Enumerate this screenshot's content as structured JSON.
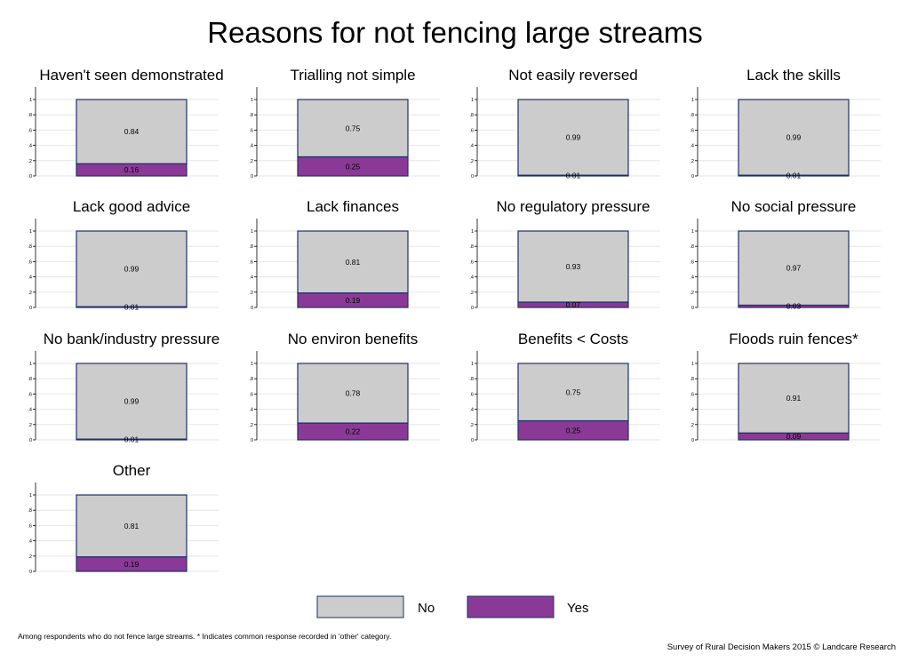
{
  "title": "Reasons for not fencing large streams",
  "footnote": "Among respondents who do not fence large streams. * Indicates common response recorded in 'other' category.",
  "source": "Survey of Rural Decision Makers 2015 © Landcare Research",
  "legend": {
    "no_label": "No",
    "yes_label": "Yes"
  },
  "colors": {
    "no": "#cccccc",
    "yes": "#8a3a96",
    "border": "#1f2f6b",
    "grid": "#e6e6e6",
    "axis": "#000000"
  },
  "chart_data": {
    "type": "bar",
    "stacked": true,
    "layout": "small-multiples",
    "ylim": [
      0,
      1
    ],
    "yticks": [
      "0",
      ".2",
      ".4",
      ".6",
      ".8",
      "1"
    ],
    "series_names": [
      "No",
      "Yes"
    ],
    "panels": [
      {
        "title": "Haven't seen demonstrated",
        "no": 0.84,
        "yes": 0.16,
        "no_label": "0.84",
        "yes_label": "0.16"
      },
      {
        "title": "Trialling not simple",
        "no": 0.75,
        "yes": 0.25,
        "no_label": "0.75",
        "yes_label": "0.25"
      },
      {
        "title": "Not easily reversed",
        "no": 0.99,
        "yes": 0.01,
        "no_label": "0.99",
        "yes_label": "0.01"
      },
      {
        "title": "Lack the skills",
        "no": 0.99,
        "yes": 0.01,
        "no_label": "0.99",
        "yes_label": "0.01"
      },
      {
        "title": "Lack good advice",
        "no": 0.99,
        "yes": 0.01,
        "no_label": "0.99",
        "yes_label": "0.01"
      },
      {
        "title": "Lack finances",
        "no": 0.81,
        "yes": 0.19,
        "no_label": "0.81",
        "yes_label": "0.19"
      },
      {
        "title": "No regulatory pressure",
        "no": 0.93,
        "yes": 0.07,
        "no_label": "0.93",
        "yes_label": "0.07"
      },
      {
        "title": "No social pressure",
        "no": 0.97,
        "yes": 0.03,
        "no_label": "0.97",
        "yes_label": "0.03"
      },
      {
        "title": "No bank/industry pressure",
        "no": 0.99,
        "yes": 0.01,
        "no_label": "0.99",
        "yes_label": "0.01"
      },
      {
        "title": "No environ benefits",
        "no": 0.78,
        "yes": 0.22,
        "no_label": "0.78",
        "yes_label": "0.22"
      },
      {
        "title": "Benefits < Costs",
        "no": 0.75,
        "yes": 0.25,
        "no_label": "0.75",
        "yes_label": "0.25"
      },
      {
        "title": "Floods ruin fences*",
        "no": 0.91,
        "yes": 0.09,
        "no_label": "0.91",
        "yes_label": "0.09"
      },
      {
        "title": "Other",
        "no": 0.81,
        "yes": 0.19,
        "no_label": "0.81",
        "yes_label": "0.19"
      }
    ]
  }
}
